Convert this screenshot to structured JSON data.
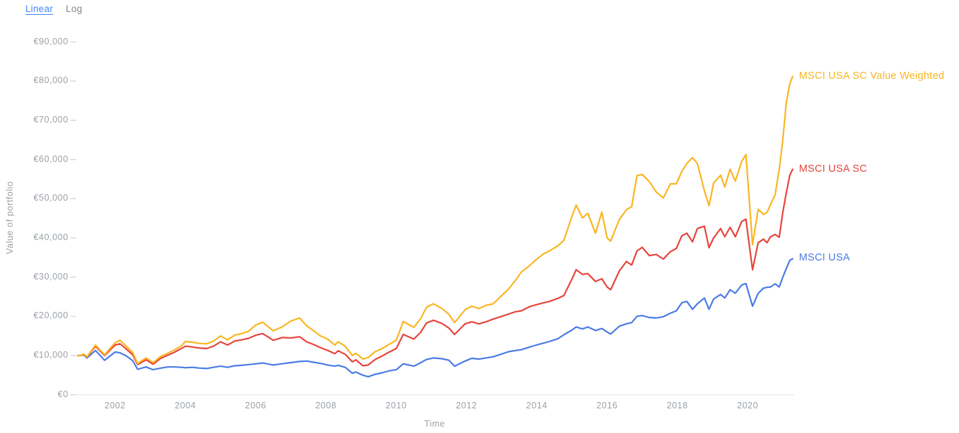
{
  "toggle": {
    "linear_label": "Linear",
    "log_label": "Log",
    "active": "Linear"
  },
  "y_axis": {
    "title": "Value of portfolio",
    "ticks": [
      {
        "label": "€90,000",
        "value": 90000
      },
      {
        "label": "€80,000",
        "value": 80000
      },
      {
        "label": "€70,000",
        "value": 70000
      },
      {
        "label": "€60,000",
        "value": 60000
      },
      {
        "label": "€50,000",
        "value": 50000
      },
      {
        "label": "€40,000",
        "value": 40000
      },
      {
        "label": "€30,000",
        "value": 30000
      },
      {
        "label": "€20,000",
        "value": 20000
      },
      {
        "label": "€10,000",
        "value": 10000
      },
      {
        "label": "€0",
        "value": 0
      }
    ]
  },
  "x_axis": {
    "title": "Time",
    "ticks": [
      {
        "label": "2002",
        "value": 2002
      },
      {
        "label": "2004",
        "value": 2004
      },
      {
        "label": "2006",
        "value": 2006
      },
      {
        "label": "2008",
        "value": 2008
      },
      {
        "label": "2010",
        "value": 2010
      },
      {
        "label": "2012",
        "value": 2012
      },
      {
        "label": "2014",
        "value": 2014
      },
      {
        "label": "2016",
        "value": 2016
      },
      {
        "label": "2018",
        "value": 2018
      },
      {
        "label": "2020",
        "value": 2020
      }
    ]
  },
  "chart_data": {
    "type": "line",
    "title": "",
    "xlabel": "Time",
    "ylabel": "Value of portfolio",
    "currency": "EUR",
    "ylim": [
      0,
      90000
    ],
    "xlim_decimal_years": [
      2000.93,
      2021.28
    ],
    "grid": false,
    "legend_position": "line-end-labels",
    "x": [
      2000.93,
      2001.0,
      2001.1,
      2001.2,
      2001.44,
      2001.7,
      2002.0,
      2002.14,
      2002.3,
      2002.5,
      2002.64,
      2002.88,
      2003.08,
      2003.3,
      2003.5,
      2003.7,
      2003.9,
      2004.0,
      2004.2,
      2004.4,
      2004.6,
      2004.8,
      2005.0,
      2005.2,
      2005.4,
      2005.6,
      2005.8,
      2006.0,
      2006.2,
      2006.5,
      2006.75,
      2007.0,
      2007.25,
      2007.45,
      2007.65,
      2007.85,
      2008.05,
      2008.25,
      2008.35,
      2008.55,
      2008.75,
      2008.85,
      2009.05,
      2009.2,
      2009.4,
      2009.6,
      2009.8,
      2010.0,
      2010.2,
      2010.5,
      2010.7,
      2010.86,
      2011.06,
      2011.3,
      2011.5,
      2011.66,
      2011.96,
      2012.15,
      2012.35,
      2012.55,
      2012.76,
      2013.0,
      2013.2,
      2013.4,
      2013.56,
      2013.8,
      2013.96,
      2014.2,
      2014.36,
      2014.6,
      2014.77,
      2015.0,
      2015.12,
      2015.3,
      2015.45,
      2015.67,
      2015.85,
      2016.0,
      2016.1,
      2016.35,
      2016.55,
      2016.7,
      2016.85,
      2017.0,
      2017.2,
      2017.4,
      2017.6,
      2017.8,
      2017.97,
      2018.13,
      2018.27,
      2018.43,
      2018.57,
      2018.77,
      2018.9,
      2019.03,
      2019.23,
      2019.35,
      2019.5,
      2019.65,
      2019.83,
      2019.95,
      2020.14,
      2020.3,
      2020.45,
      2020.55,
      2020.65,
      2020.78,
      2020.9,
      2021.0,
      2021.1,
      2021.2,
      2021.28
    ],
    "series": [
      {
        "name": "MSCI USA SC Value Weighted",
        "color": "#f9b622",
        "values": [
          10000,
          10000,
          10400,
          9700,
          12700,
          10200,
          13300,
          13900,
          12500,
          10800,
          8000,
          9400,
          8200,
          9800,
          10600,
          11500,
          12600,
          13600,
          13400,
          13100,
          13000,
          13700,
          15000,
          14000,
          15200,
          15600,
          16200,
          17800,
          18500,
          16300,
          17300,
          18800,
          19600,
          17600,
          16300,
          15000,
          14200,
          12700,
          13500,
          12400,
          10000,
          10600,
          9100,
          9500,
          11000,
          11800,
          12900,
          13900,
          18700,
          17200,
          19500,
          22300,
          23200,
          22000,
          20500,
          18400,
          21700,
          22600,
          22000,
          22800,
          23200,
          25300,
          27000,
          29300,
          31300,
          33000,
          34300,
          36000,
          36700,
          38000,
          39400,
          45500,
          48400,
          45100,
          46300,
          41200,
          46600,
          40000,
          39200,
          44700,
          47200,
          48000,
          55900,
          56200,
          54400,
          51700,
          50200,
          53800,
          53800,
          57000,
          59000,
          60500,
          59000,
          52000,
          48200,
          54000,
          56000,
          53000,
          57500,
          54500,
          59500,
          61300,
          38300,
          47300,
          46000,
          46500,
          48500,
          51000,
          57500,
          64900,
          74500,
          79300,
          81200
        ]
      },
      {
        "name": "MSCI USA SC",
        "color": "#e5453c",
        "values": [
          10000,
          10000,
          10300,
          9600,
          12400,
          10000,
          12700,
          13000,
          11800,
          10200,
          7700,
          8900,
          7800,
          9300,
          10100,
          10900,
          11900,
          12400,
          12200,
          11900,
          11800,
          12400,
          13500,
          12700,
          13700,
          14000,
          14400,
          15200,
          15600,
          13900,
          14600,
          14500,
          14800,
          13500,
          12800,
          12000,
          11300,
          10500,
          11200,
          10300,
          8400,
          8900,
          7400,
          7600,
          9000,
          9900,
          10900,
          11800,
          15400,
          14200,
          16000,
          18300,
          19000,
          18200,
          17000,
          15400,
          18100,
          18600,
          18100,
          18600,
          19300,
          20000,
          20600,
          21200,
          21400,
          22500,
          22900,
          23500,
          23800,
          24600,
          25300,
          29500,
          31900,
          30700,
          30900,
          28900,
          29600,
          27500,
          26800,
          31600,
          34000,
          33100,
          36700,
          37600,
          35500,
          35800,
          34600,
          36500,
          37300,
          40600,
          41200,
          39000,
          42400,
          43000,
          37500,
          40000,
          42400,
          40300,
          42700,
          40300,
          44200,
          44800,
          31900,
          38800,
          39700,
          38800,
          40300,
          40900,
          40200,
          46500,
          51500,
          56000,
          57500
        ]
      },
      {
        "name": "MSCI USA",
        "color": "#4b7be5",
        "values": [
          10000,
          10000,
          10200,
          9400,
          11300,
          8800,
          10900,
          10700,
          10000,
          8700,
          6500,
          7100,
          6400,
          6800,
          7100,
          7100,
          7000,
          6900,
          7000,
          6800,
          6700,
          7000,
          7300,
          7000,
          7400,
          7500,
          7700,
          7900,
          8100,
          7600,
          7900,
          8200,
          8500,
          8600,
          8300,
          8000,
          7600,
          7300,
          7500,
          7000,
          5500,
          5800,
          5000,
          4600,
          5200,
          5600,
          6100,
          6400,
          7900,
          7300,
          8200,
          9000,
          9400,
          9200,
          8800,
          7300,
          8600,
          9300,
          9100,
          9400,
          9700,
          10400,
          11000,
          11300,
          11500,
          12200,
          12600,
          13200,
          13600,
          14300,
          15300,
          16500,
          17300,
          16800,
          17300,
          16400,
          16900,
          16000,
          15500,
          17500,
          18100,
          18400,
          20000,
          20200,
          19700,
          19600,
          19900,
          20800,
          21400,
          23500,
          23800,
          21800,
          23200,
          24700,
          21800,
          24400,
          25600,
          24700,
          26800,
          25900,
          28000,
          28400,
          22600,
          25900,
          27200,
          27400,
          27500,
          28300,
          27500,
          30000,
          32200,
          34300,
          34700
        ]
      }
    ]
  }
}
